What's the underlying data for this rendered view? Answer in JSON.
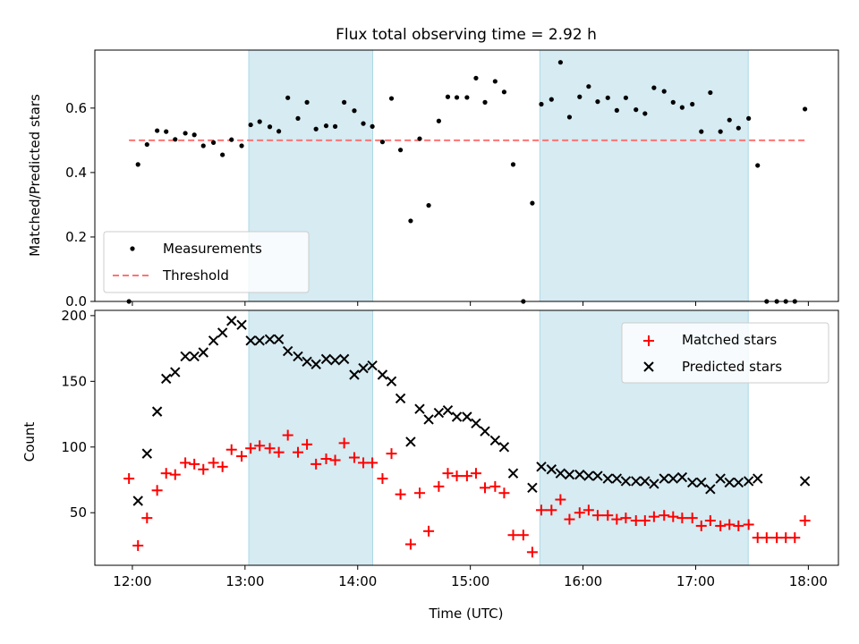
{
  "title": "Flux total observing time = 2.92 h",
  "colors": {
    "band": "#add8e6",
    "measurement": "#000000",
    "threshold": "#ff7373",
    "matched": "#ff0000",
    "predicted": "#000000"
  },
  "chart_data": [
    {
      "type": "scatter",
      "ylabel": "Matched/Predicted stars",
      "xlim": [
        11.667,
        18.267
      ],
      "ylim": [
        0,
        0.78
      ],
      "yticks": [
        0.0,
        0.2,
        0.4,
        0.6
      ],
      "ytick_labels": [
        "0.0",
        "0.2",
        "0.4",
        "0.6"
      ],
      "xticks": [
        12,
        13,
        14,
        15,
        16,
        17,
        18
      ],
      "grid": false,
      "legend": "lower-left",
      "shaded_intervals": [
        [
          "13:02",
          "14:08"
        ],
        [
          "15:37",
          "17:28"
        ]
      ],
      "series": [
        {
          "name": "Measurements",
          "points": [
            [
              11.97,
              0.0
            ],
            [
              12.05,
              0.425
            ],
            [
              12.13,
              0.487
            ],
            [
              12.22,
              0.53
            ],
            [
              12.3,
              0.527
            ],
            [
              12.38,
              0.503
            ],
            [
              12.47,
              0.522
            ],
            [
              12.55,
              0.517
            ],
            [
              12.63,
              0.483
            ],
            [
              12.72,
              0.493
            ],
            [
              12.8,
              0.455
            ],
            [
              12.88,
              0.502
            ],
            [
              12.97,
              0.483
            ],
            [
              13.05,
              0.548
            ],
            [
              13.13,
              0.558
            ],
            [
              13.22,
              0.542
            ],
            [
              13.3,
              0.528
            ],
            [
              13.38,
              0.632
            ],
            [
              13.47,
              0.568
            ],
            [
              13.55,
              0.618
            ],
            [
              13.63,
              0.535
            ],
            [
              13.72,
              0.545
            ],
            [
              13.8,
              0.543
            ],
            [
              13.88,
              0.618
            ],
            [
              13.97,
              0.592
            ],
            [
              14.05,
              0.552
            ],
            [
              14.13,
              0.543
            ],
            [
              14.22,
              0.495
            ],
            [
              14.3,
              0.63
            ],
            [
              14.38,
              0.47
            ],
            [
              14.47,
              0.25
            ],
            [
              14.55,
              0.505
            ],
            [
              14.63,
              0.298
            ],
            [
              14.72,
              0.56
            ],
            [
              14.8,
              0.635
            ],
            [
              14.88,
              0.633
            ],
            [
              14.97,
              0.633
            ],
            [
              15.05,
              0.693
            ],
            [
              15.13,
              0.618
            ],
            [
              15.22,
              0.683
            ],
            [
              15.3,
              0.65
            ],
            [
              15.38,
              0.425
            ],
            [
              15.47,
              0.0
            ],
            [
              15.55,
              0.305
            ],
            [
              15.63,
              0.612
            ],
            [
              15.72,
              0.627
            ],
            [
              15.8,
              0.742
            ],
            [
              15.88,
              0.572
            ],
            [
              15.97,
              0.635
            ],
            [
              16.05,
              0.667
            ],
            [
              16.13,
              0.62
            ],
            [
              16.22,
              0.632
            ],
            [
              16.3,
              0.593
            ],
            [
              16.38,
              0.632
            ],
            [
              16.47,
              0.595
            ],
            [
              16.55,
              0.583
            ],
            [
              16.63,
              0.663
            ],
            [
              16.72,
              0.652
            ],
            [
              16.8,
              0.618
            ],
            [
              16.88,
              0.602
            ],
            [
              16.97,
              0.612
            ],
            [
              17.05,
              0.527
            ],
            [
              17.13,
              0.648
            ],
            [
              17.22,
              0.527
            ],
            [
              17.3,
              0.563
            ],
            [
              17.38,
              0.538
            ],
            [
              17.47,
              0.568
            ],
            [
              17.55,
              0.422
            ],
            [
              17.63,
              0.0
            ],
            [
              17.72,
              0.0
            ],
            [
              17.8,
              0.0
            ],
            [
              17.88,
              0.0
            ],
            [
              17.97,
              0.597
            ]
          ]
        },
        {
          "name": "Threshold",
          "x": [
            11.97,
            17.97
          ],
          "y": [
            0.5,
            0.5
          ],
          "style": "dashed"
        }
      ]
    },
    {
      "type": "scatter",
      "xlabel": "Time (UTC)",
      "ylabel": "Count",
      "xlim": [
        11.667,
        18.267
      ],
      "ylim": [
        10,
        204
      ],
      "yticks": [
        50,
        100,
        150,
        200
      ],
      "xticks": [
        12,
        13,
        14,
        15,
        16,
        17,
        18
      ],
      "xtick_labels": [
        "12:00",
        "13:00",
        "14:00",
        "15:00",
        "16:00",
        "17:00",
        "18:00"
      ],
      "grid": false,
      "legend": "top-right",
      "shaded_intervals": [
        [
          "13:02",
          "14:08"
        ],
        [
          "15:37",
          "17:28"
        ]
      ],
      "series": [
        {
          "name": "Matched stars",
          "marker": "+",
          "points": [
            [
              11.97,
              76
            ],
            [
              12.05,
              25
            ],
            [
              12.13,
              46
            ],
            [
              12.22,
              67
            ],
            [
              12.3,
              80
            ],
            [
              12.38,
              79
            ],
            [
              12.47,
              88
            ],
            [
              12.55,
              87
            ],
            [
              12.63,
              83
            ],
            [
              12.72,
              88
            ],
            [
              12.8,
              85
            ],
            [
              12.88,
              98
            ],
            [
              12.97,
              93
            ],
            [
              13.05,
              99
            ],
            [
              13.13,
              101
            ],
            [
              13.22,
              99
            ],
            [
              13.3,
              96
            ],
            [
              13.38,
              109
            ],
            [
              13.47,
              96
            ],
            [
              13.55,
              102
            ],
            [
              13.63,
              87
            ],
            [
              13.72,
              91
            ],
            [
              13.8,
              90
            ],
            [
              13.88,
              103
            ],
            [
              13.97,
              92
            ],
            [
              14.05,
              88
            ],
            [
              14.13,
              88
            ],
            [
              14.22,
              76
            ],
            [
              14.3,
              95
            ],
            [
              14.38,
              64
            ],
            [
              14.47,
              26
            ],
            [
              14.55,
              65
            ],
            [
              14.63,
              36
            ],
            [
              14.72,
              70
            ],
            [
              14.8,
              80
            ],
            [
              14.88,
              78
            ],
            [
              14.97,
              78
            ],
            [
              15.05,
              80
            ],
            [
              15.13,
              69
            ],
            [
              15.22,
              70
            ],
            [
              15.3,
              65
            ],
            [
              15.38,
              33
            ],
            [
              15.47,
              33
            ],
            [
              15.55,
              20
            ],
            [
              15.63,
              52
            ],
            [
              15.72,
              52
            ],
            [
              15.8,
              60
            ],
            [
              15.88,
              45
            ],
            [
              15.97,
              50
            ],
            [
              16.05,
              52
            ],
            [
              16.13,
              48
            ],
            [
              16.22,
              48
            ],
            [
              16.3,
              45
            ],
            [
              16.38,
              46
            ],
            [
              16.47,
              44
            ],
            [
              16.55,
              44
            ],
            [
              16.63,
              47
            ],
            [
              16.72,
              48
            ],
            [
              16.8,
              47
            ],
            [
              16.88,
              46
            ],
            [
              16.97,
              46
            ],
            [
              17.05,
              40
            ],
            [
              17.13,
              44
            ],
            [
              17.22,
              40
            ],
            [
              17.3,
              41
            ],
            [
              17.38,
              40
            ],
            [
              17.47,
              41
            ],
            [
              17.55,
              31
            ],
            [
              17.63,
              31
            ],
            [
              17.72,
              31
            ],
            [
              17.8,
              31
            ],
            [
              17.88,
              31
            ],
            [
              17.97,
              44
            ]
          ]
        },
        {
          "name": "Predicted stars",
          "marker": "x",
          "points": [
            [
              12.05,
              59
            ],
            [
              12.13,
              95
            ],
            [
              12.22,
              127
            ],
            [
              12.3,
              152
            ],
            [
              12.38,
              157
            ],
            [
              12.47,
              169
            ],
            [
              12.55,
              169
            ],
            [
              12.63,
              172
            ],
            [
              12.72,
              181
            ],
            [
              12.8,
              187
            ],
            [
              12.88,
              196
            ],
            [
              12.97,
              193
            ],
            [
              13.05,
              181
            ],
            [
              13.13,
              181
            ],
            [
              13.22,
              182
            ],
            [
              13.3,
              182
            ],
            [
              13.38,
              173
            ],
            [
              13.47,
              169
            ],
            [
              13.55,
              165
            ],
            [
              13.63,
              163
            ],
            [
              13.72,
              167
            ],
            [
              13.8,
              166
            ],
            [
              13.88,
              167
            ],
            [
              13.97,
              155
            ],
            [
              14.05,
              160
            ],
            [
              14.13,
              162
            ],
            [
              14.22,
              155
            ],
            [
              14.3,
              150
            ],
            [
              14.38,
              137
            ],
            [
              14.47,
              104
            ],
            [
              14.55,
              129
            ],
            [
              14.63,
              121
            ],
            [
              14.72,
              126
            ],
            [
              14.8,
              128
            ],
            [
              14.88,
              123
            ],
            [
              14.97,
              123
            ],
            [
              15.05,
              118
            ],
            [
              15.13,
              112
            ],
            [
              15.22,
              105
            ],
            [
              15.3,
              100
            ],
            [
              15.38,
              80
            ],
            [
              15.55,
              69
            ],
            [
              15.63,
              85
            ],
            [
              15.72,
              83
            ],
            [
              15.8,
              80
            ],
            [
              15.88,
              79
            ],
            [
              15.97,
              79
            ],
            [
              16.05,
              78
            ],
            [
              16.13,
              78
            ],
            [
              16.22,
              76
            ],
            [
              16.3,
              76
            ],
            [
              16.38,
              74
            ],
            [
              16.47,
              74
            ],
            [
              16.55,
              74
            ],
            [
              16.63,
              72
            ],
            [
              16.72,
              76
            ],
            [
              16.8,
              76
            ],
            [
              16.88,
              77
            ],
            [
              16.97,
              73
            ],
            [
              17.05,
              73
            ],
            [
              17.13,
              68
            ],
            [
              17.22,
              76
            ],
            [
              17.3,
              73
            ],
            [
              17.38,
              73
            ],
            [
              17.47,
              74
            ],
            [
              17.55,
              76
            ],
            [
              17.97,
              74
            ]
          ]
        }
      ]
    }
  ]
}
